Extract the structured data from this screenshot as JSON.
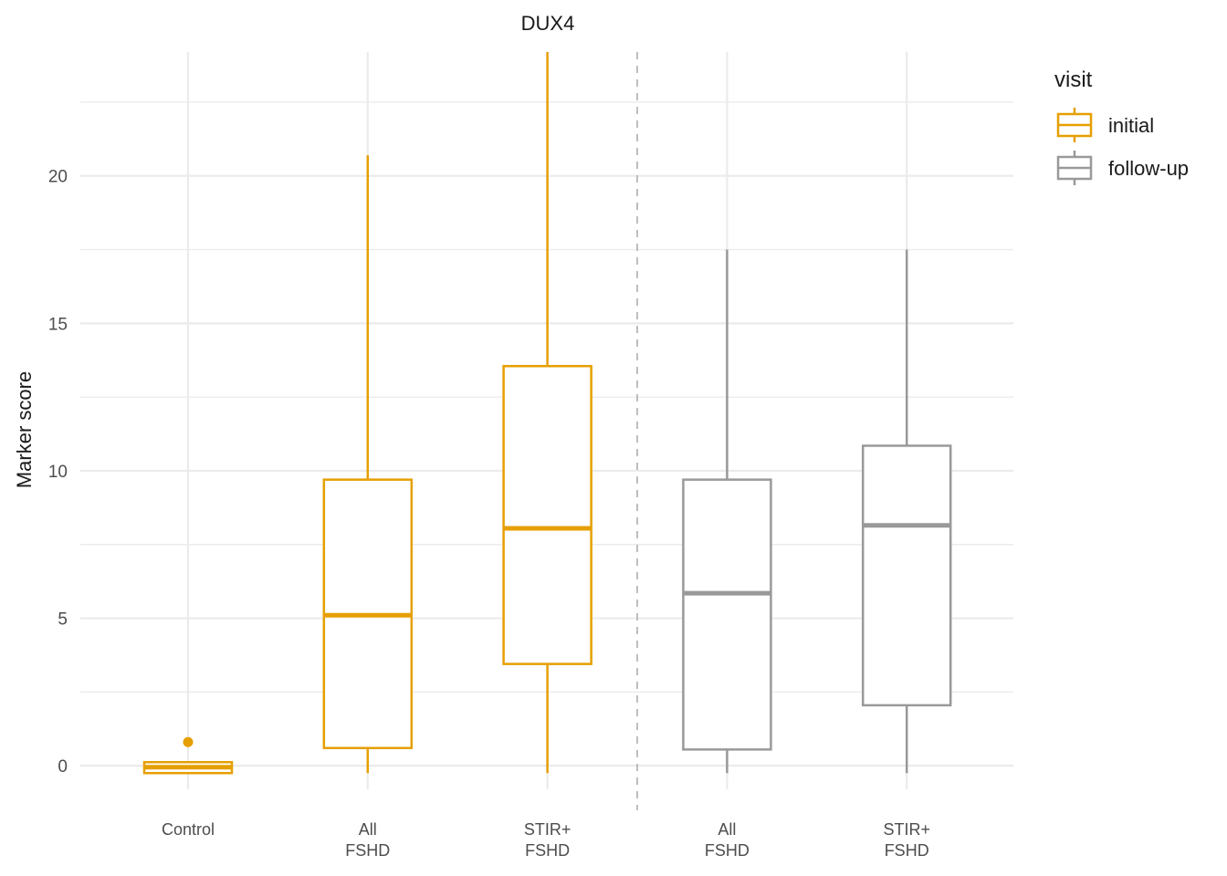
{
  "chart_data": {
    "type": "box",
    "title": "DUX4",
    "xlabel": "",
    "ylabel": "Marker score",
    "ylim": [
      -0.8,
      24.2
    ],
    "yticks": [
      0,
      5,
      10,
      15,
      20
    ],
    "grid": true,
    "legend": {
      "title": "visit",
      "placement": "top-right",
      "entries": [
        "initial",
        "follow-up"
      ]
    },
    "colors": {
      "initial": "#E69F00",
      "follow-up": "#999999",
      "divider": "#BEBEBE",
      "grid": "#EBEBEB"
    },
    "categories": [
      {
        "label": [
          "Control"
        ],
        "visit": "initial",
        "whisker_low": -0.25,
        "q1": -0.25,
        "median": -0.05,
        "q3": 0.12,
        "whisker_high": 0.12,
        "outliers": [
          0.8
        ]
      },
      {
        "label": [
          "All",
          "FSHD"
        ],
        "visit": "initial",
        "whisker_low": -0.25,
        "q1": 0.6,
        "median": 5.1,
        "q3": 9.7,
        "whisker_high": 20.7,
        "outliers": []
      },
      {
        "label": [
          "STIR+",
          "FSHD"
        ],
        "visit": "initial",
        "whisker_low": -0.25,
        "q1": 3.45,
        "median": 8.05,
        "q3": 13.55,
        "whisker_high": 24.2,
        "outliers": []
      },
      {
        "label": [
          "All",
          "FSHD"
        ],
        "visit": "follow-up",
        "whisker_low": -0.25,
        "q1": 0.55,
        "median": 5.85,
        "q3": 9.7,
        "whisker_high": 17.5,
        "outliers": []
      },
      {
        "label": [
          "STIR+",
          "FSHD"
        ],
        "visit": "follow-up",
        "whisker_low": -0.25,
        "q1": 2.05,
        "median": 8.15,
        "q3": 10.85,
        "whisker_high": 17.5,
        "outliers": []
      }
    ],
    "divider_between": [
      2,
      3
    ]
  }
}
